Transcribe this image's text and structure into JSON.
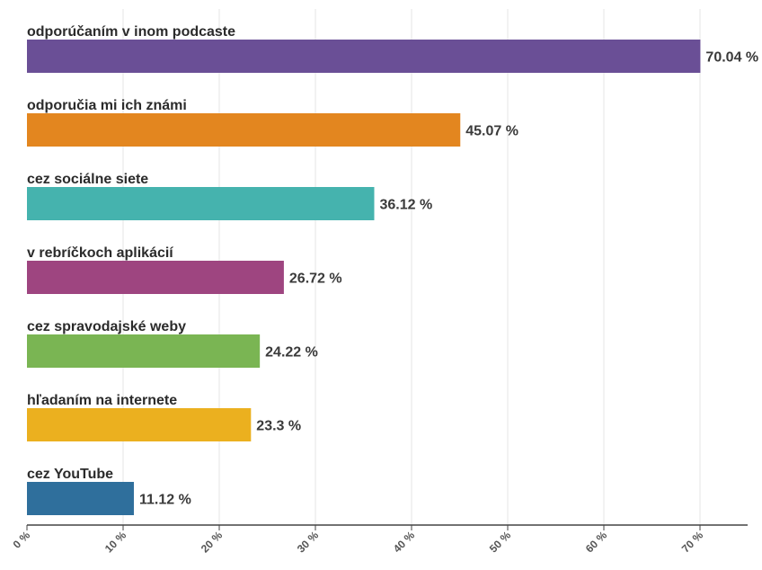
{
  "chart_data": {
    "type": "bar",
    "orientation": "horizontal",
    "categories": [
      "odporúčaním v inom podcaste",
      "odporučia mi ich známi",
      "cez sociálne siete",
      "v rebríčkoch aplikácií",
      "cez spravodajské weby",
      "hľadaním na internete",
      "cez YouTube"
    ],
    "values": [
      70.04,
      45.07,
      36.12,
      26.72,
      24.22,
      23.3,
      11.12
    ],
    "value_labels": [
      "70.04 %",
      "45.07 %",
      "36.12 %",
      "26.72 %",
      "24.22 %",
      "23.3 %",
      "11.12 %"
    ],
    "colors": [
      "#6a4f96",
      "#e3861f",
      "#45b3ae",
      "#9e4580",
      "#7ab553",
      "#ebb01f",
      "#2f6f9c"
    ],
    "xlim": [
      0,
      75
    ],
    "xticks": [
      0,
      10,
      20,
      30,
      40,
      50,
      60,
      70
    ],
    "xtick_labels": [
      "0 %",
      "10 %",
      "20 %",
      "30 %",
      "40 %",
      "50 %",
      "60 %",
      "70 %"
    ],
    "grid": true,
    "title": "",
    "xlabel": "",
    "ylabel": ""
  }
}
